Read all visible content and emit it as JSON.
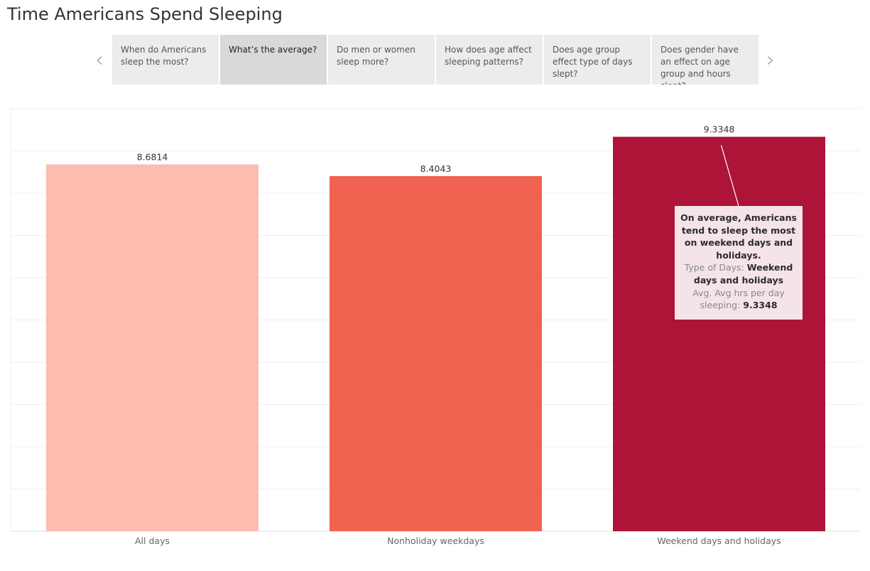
{
  "page": {
    "title": "Time Americans Spend Sleeping"
  },
  "story": {
    "prev_icon": "chevron-left-icon",
    "next_icon": "chevron-right-icon",
    "prev_glyph": "‹",
    "next_glyph": "›",
    "tabs": [
      {
        "label": "When do Americans sleep the most?",
        "active": false
      },
      {
        "label": "What’s the average?",
        "active": true
      },
      {
        "label": "Do men or women sleep more?",
        "active": false
      },
      {
        "label": "How does age affect sleeping patterns?",
        "active": false
      },
      {
        "label": "Does age group effect type of days slept?",
        "active": false
      },
      {
        "label": "Does gender have an effect on age group and hours slept?",
        "active": false
      }
    ]
  },
  "chart_data": {
    "type": "bar",
    "title": "",
    "xlabel": "",
    "ylabel": "",
    "categories": [
      "All days",
      "Nonholiday weekdays",
      "Weekend days and holidays"
    ],
    "values": [
      8.6814,
      8.4043,
      9.3348
    ],
    "value_labels": [
      "8.6814",
      "8.4043",
      "9.3348"
    ],
    "colors": [
      "#fcbcb0",
      "#f06351",
      "#ae1338"
    ],
    "ylim": [
      0,
      10
    ],
    "grid": true,
    "gridline_step": 1
  },
  "tooltip": {
    "headline": "On average, Americans tend to sleep the most on weekend days and holidays.",
    "field1_label": "Type of Days:",
    "field1_value": "Weekend days and holidays",
    "field2_label": "Avg. Avg hrs per day sleeping:",
    "field2_value": "9.3348"
  }
}
